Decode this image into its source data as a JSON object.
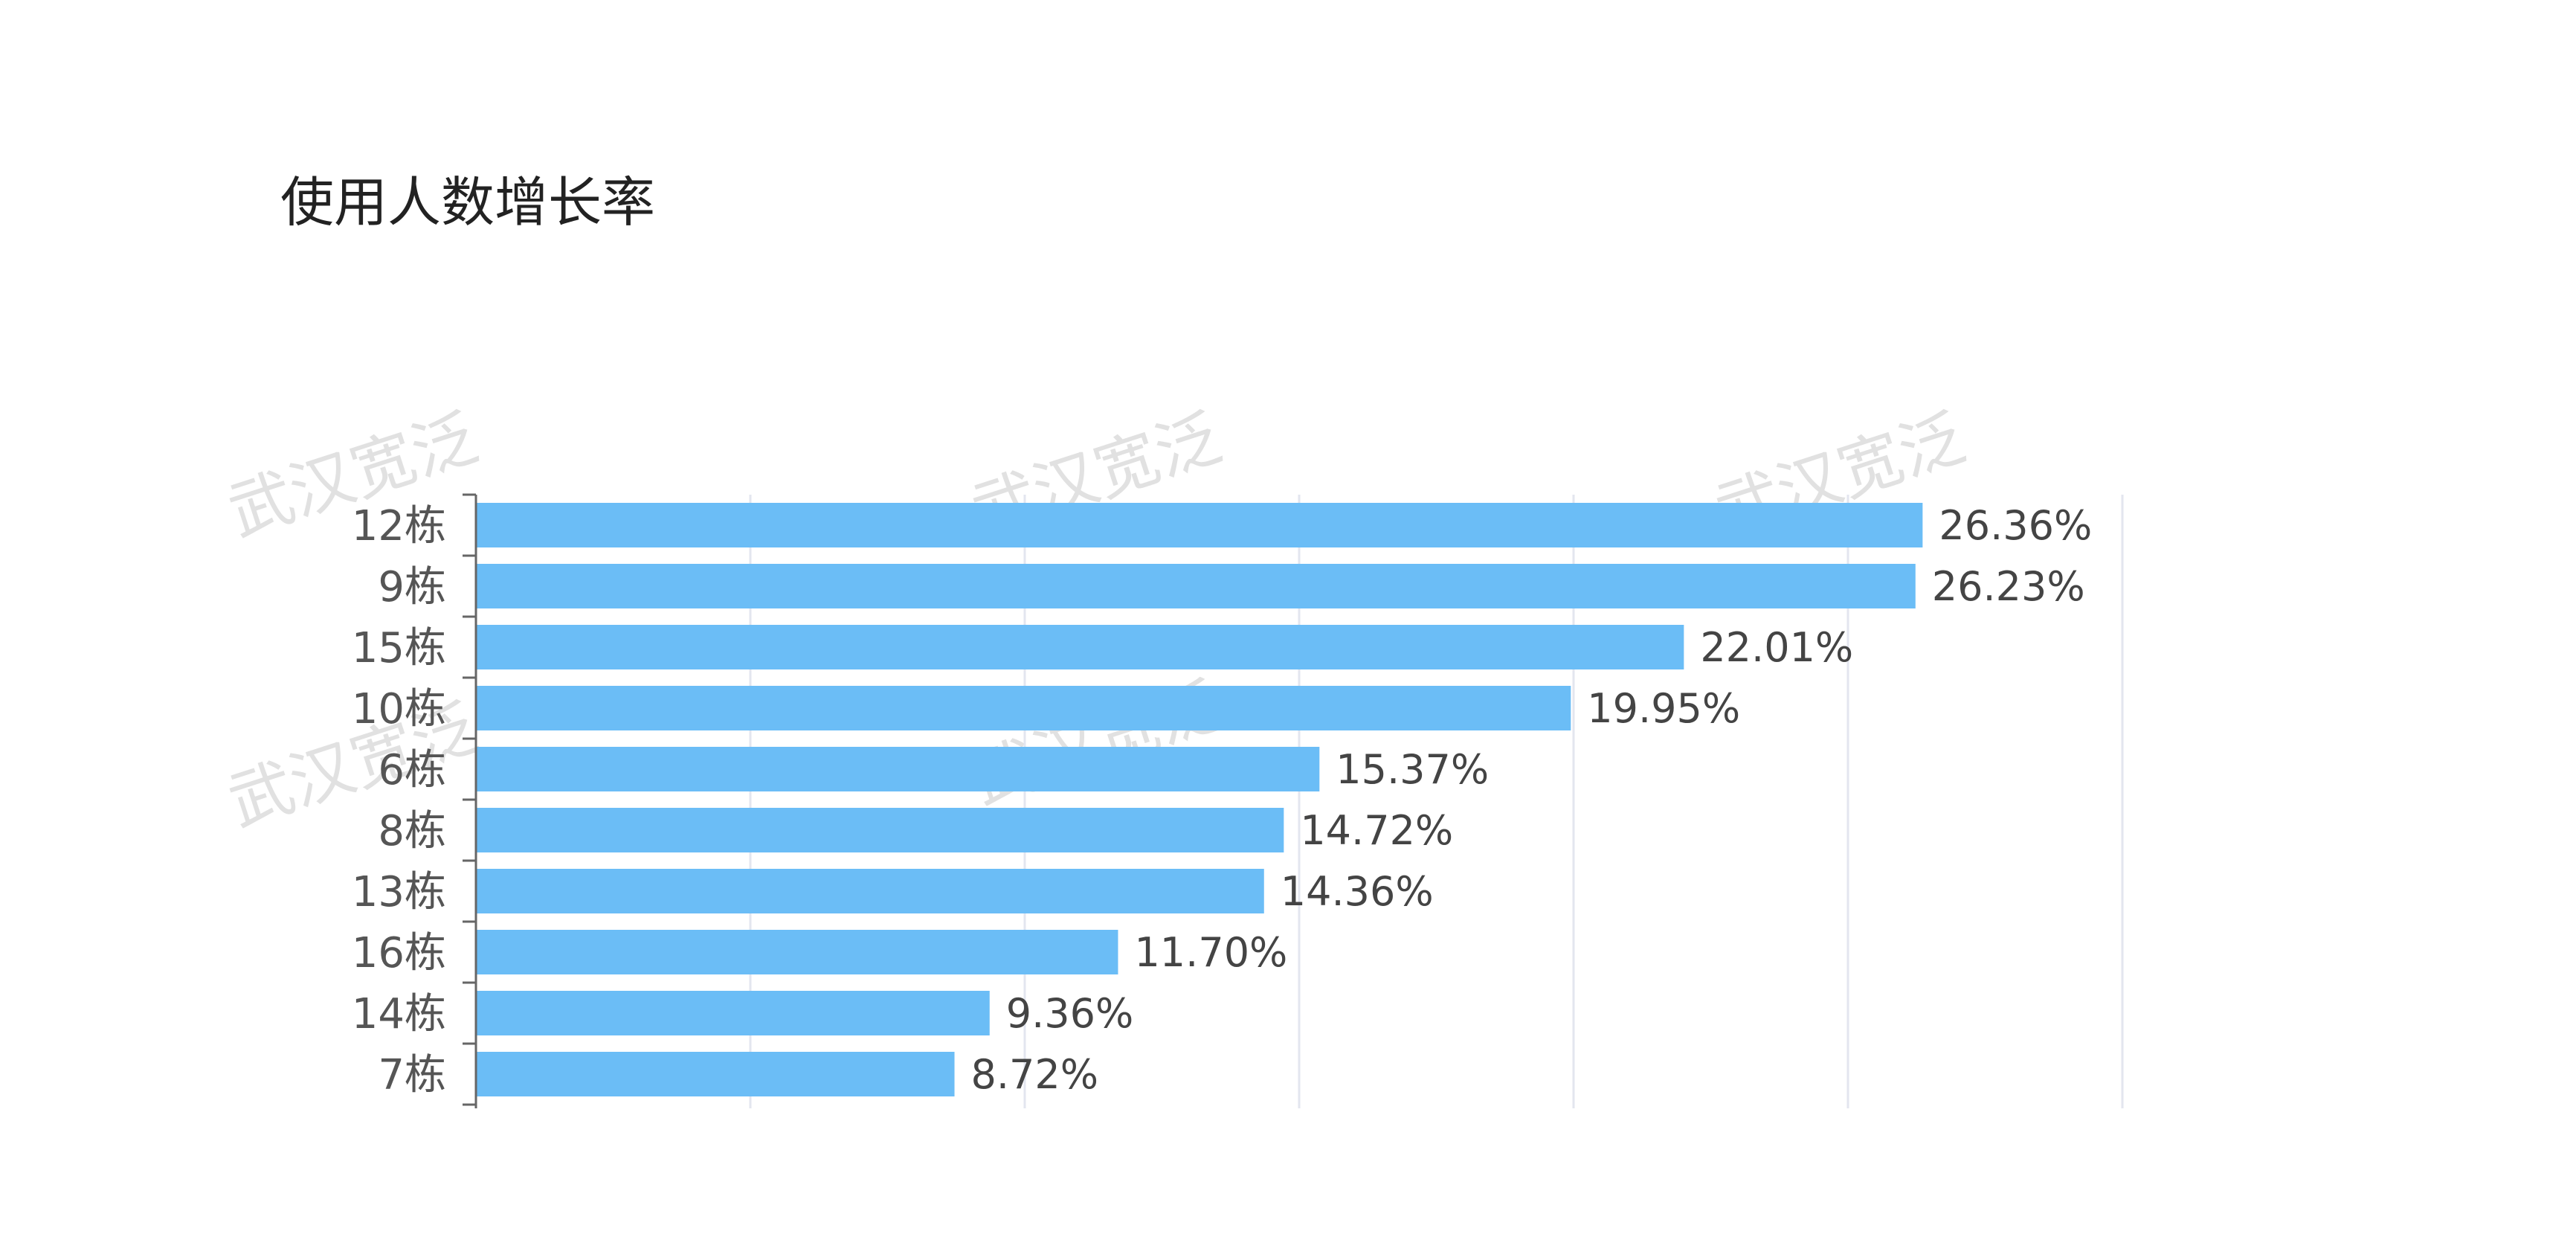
{
  "title": "使用人数增长率",
  "watermark_text": "武汉宽泛",
  "chart_data": {
    "type": "bar",
    "orientation": "horizontal",
    "title": "使用人数增长率",
    "categories": [
      "12栋",
      "9栋",
      "15栋",
      "10栋",
      "6栋",
      "8栋",
      "13栋",
      "16栋",
      "14栋",
      "7栋"
    ],
    "values": [
      26.36,
      26.23,
      22.01,
      19.95,
      15.37,
      14.72,
      14.36,
      11.7,
      9.36,
      8.72
    ],
    "value_labels": [
      "26.36%",
      "26.23%",
      "22.01%",
      "19.95%",
      "15.37%",
      "14.72%",
      "14.36%",
      "11.70%",
      "9.36%",
      "8.72%"
    ],
    "unit": "%",
    "xlim": [
      0,
      30
    ],
    "grid": true,
    "legend": "none",
    "bar_color": "#6BBDF6",
    "grid_color": "#e3e6ef",
    "axis_color": "#666666"
  }
}
